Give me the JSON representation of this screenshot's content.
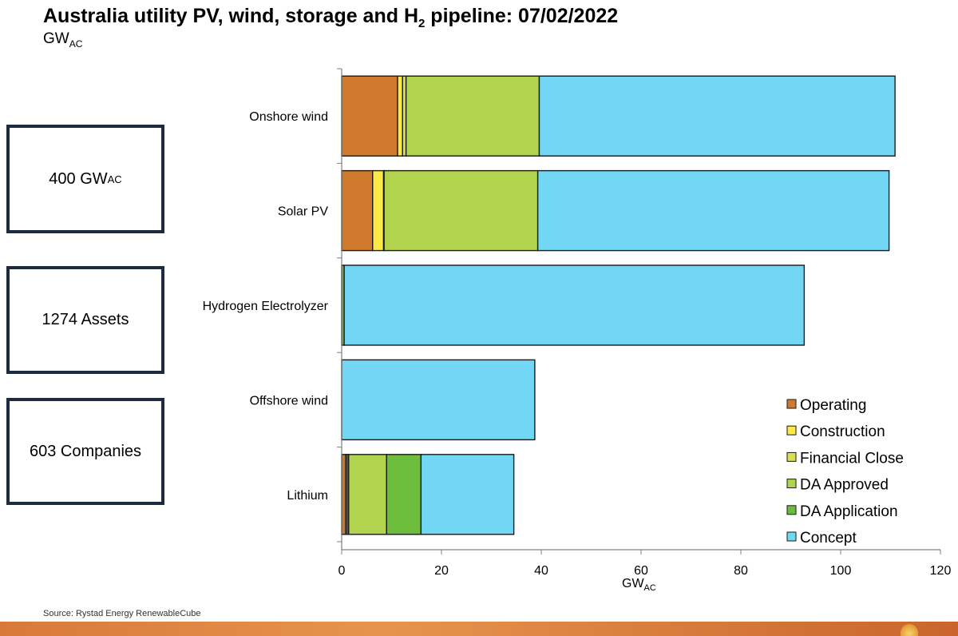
{
  "header": {
    "title_part1": "Australia utility PV, wind, storage and H",
    "title_sub": "2",
    "title_part2": " pipeline: 07/02/2022",
    "subtitle_main": "GW",
    "subtitle_sub": "AC"
  },
  "stats": {
    "capacity_value": "400 GW",
    "capacity_unit_sub": "AC",
    "assets": "1274 Assets",
    "companies": "603 Companies"
  },
  "footer": {
    "source": "Source: Rystad Energy RenewableCube"
  },
  "chart_data": {
    "type": "bar",
    "orientation": "horizontal",
    "stacked": true,
    "title": "Australia utility PV, wind, storage and H2 pipeline: 07/02/2022",
    "subtitle": "GWAC",
    "xlabel": "GW",
    "xlabel_sub": "AC",
    "ylabel": "",
    "xlim": [
      0,
      120
    ],
    "xticks": [
      0,
      20,
      40,
      60,
      80,
      100,
      120
    ],
    "grid": false,
    "legend_position": "bottom-right",
    "categories": [
      "Onshore wind",
      "Solar PV",
      "Hydrogen Electrolyzer",
      "Offshore wind",
      "Lithium"
    ],
    "series": [
      {
        "name": "Operating",
        "color": "#d07a2e",
        "values": [
          11.2,
          6.2,
          0.0,
          0.0,
          0.8
        ]
      },
      {
        "name": "Construction",
        "color": "#fbe94a",
        "values": [
          1.0,
          2.2,
          0.0,
          0.0,
          0.3
        ]
      },
      {
        "name": "Financial Close",
        "color": "#d8df52",
        "values": [
          0.7,
          0.1,
          0.0,
          0.0,
          0.3
        ]
      },
      {
        "name": "DA Approved",
        "color": "#b1d34d",
        "values": [
          26.7,
          30.8,
          0.0,
          0.0,
          7.6
        ]
      },
      {
        "name": "DA Application",
        "color": "#6cbd3b",
        "values": [
          0.0,
          0.0,
          0.5,
          0.0,
          6.9
        ]
      },
      {
        "name": "Concept",
        "color": "#72d7f5",
        "values": [
          71.3,
          70.4,
          92.2,
          38.7,
          18.6
        ]
      }
    ]
  }
}
